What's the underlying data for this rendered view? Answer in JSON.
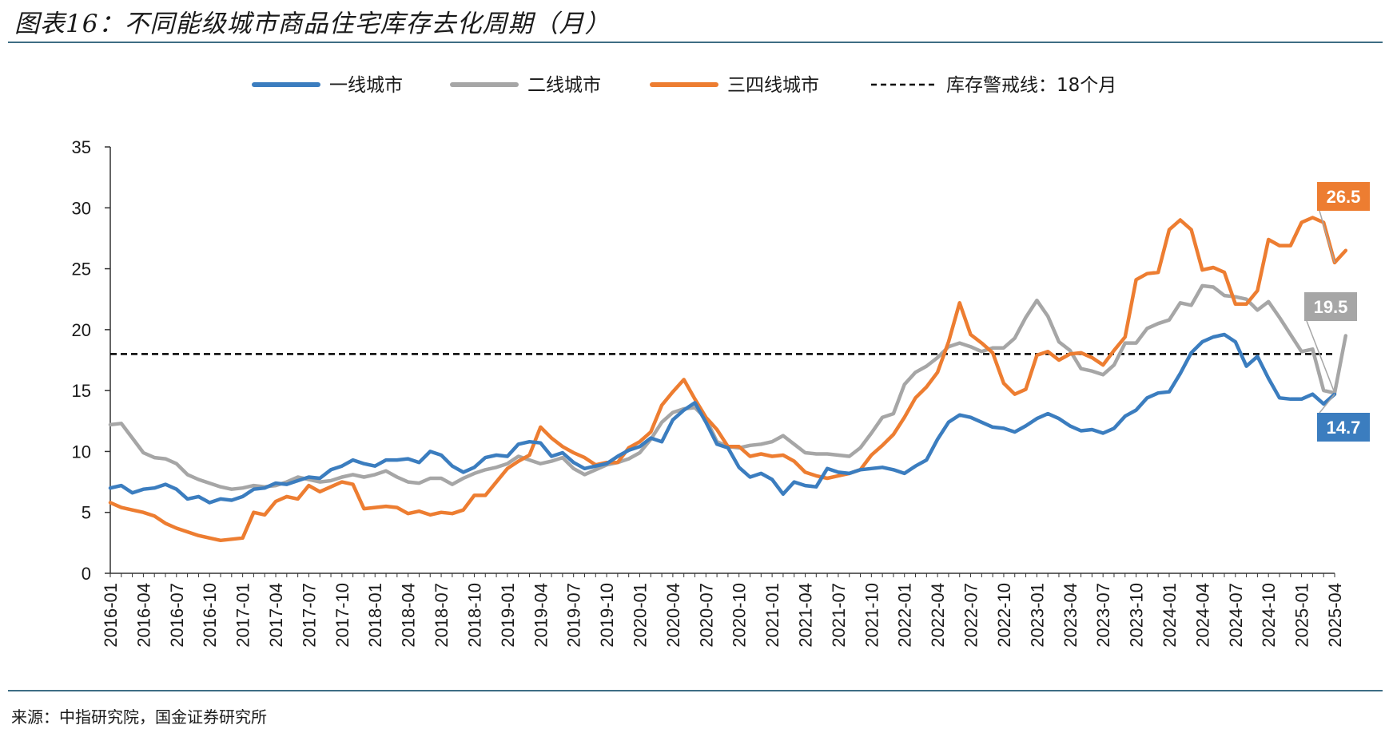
{
  "title": "图表16：不同能级城市商品住宅库存去化周期（月）",
  "source": "来源：中指研究院，国金证券研究所",
  "chart_data": {
    "type": "line",
    "title": "图表16：不同能级城市商品住宅库存去化周期（月）",
    "xlabel": "",
    "ylabel": "",
    "ylim": [
      0,
      35
    ],
    "yticks": [
      "0",
      "5",
      "10",
      "15",
      "20",
      "25",
      "30",
      "35"
    ],
    "xtick_labels": [
      "2016-01",
      "2016-04",
      "2016-07",
      "2016-10",
      "2017-01",
      "2017-04",
      "2017-07",
      "2017-10",
      "2018-01",
      "2018-04",
      "2018-07",
      "2018-10",
      "2019-01",
      "2019-04",
      "2019-07",
      "2019-10",
      "2020-01",
      "2020-04",
      "2020-07",
      "2020-10",
      "2021-01",
      "2021-04",
      "2021-07",
      "2021-10",
      "2022-01",
      "2022-04",
      "2022-07",
      "2022-10",
      "2023-01",
      "2023-04",
      "2023-07",
      "2023-10",
      "2024-01",
      "2024-04",
      "2024-07",
      "2024-10",
      "2025-01",
      "2025-04"
    ],
    "grid": false,
    "legend_position": "top",
    "series": [
      {
        "name": "一线城市",
        "color": "#3b7dbf",
        "values": [
          7.0,
          7.2,
          6.6,
          6.9,
          7.0,
          7.3,
          6.9,
          6.1,
          6.3,
          5.8,
          6.1,
          6.0,
          6.3,
          6.9,
          7.0,
          7.4,
          7.3,
          7.6,
          7.9,
          7.8,
          8.5,
          8.8,
          9.3,
          9.0,
          8.8,
          9.3,
          9.3,
          9.4,
          9.1,
          10.0,
          9.7,
          8.8,
          8.3,
          8.7,
          9.5,
          9.7,
          9.6,
          10.6,
          10.8,
          10.7,
          9.6,
          9.9,
          9.1,
          8.6,
          8.8,
          9.0,
          9.6,
          10.1,
          10.4,
          11.1,
          10.8,
          12.6,
          13.4,
          14.0,
          12.4,
          10.6,
          10.3,
          8.7,
          7.9,
          8.2,
          7.7,
          6.5,
          7.5,
          7.2,
          7.1,
          8.6,
          8.3,
          8.2,
          8.5,
          8.6,
          8.7,
          8.5,
          8.2,
          8.8,
          9.3,
          11.0,
          12.4,
          13.0,
          12.8,
          12.4,
          12.0,
          11.9,
          11.6,
          12.1,
          12.7,
          13.1,
          12.7,
          12.1,
          11.7,
          11.8,
          11.5,
          11.9,
          12.9,
          13.4,
          14.4,
          14.8,
          14.9,
          16.4,
          18.1,
          19.0,
          19.4,
          19.6,
          19.0,
          17.0,
          17.8,
          16.0,
          14.4,
          14.3,
          14.3,
          14.7,
          13.9,
          14.7
        ]
      },
      {
        "name": "二线城市",
        "color": "#a6a6a6",
        "values": [
          12.2,
          12.3,
          11.1,
          9.9,
          9.5,
          9.4,
          9.0,
          8.1,
          7.7,
          7.4,
          7.1,
          6.9,
          7.0,
          7.2,
          7.1,
          7.2,
          7.5,
          7.9,
          7.7,
          7.5,
          7.6,
          7.9,
          8.1,
          7.9,
          8.1,
          8.4,
          7.9,
          7.5,
          7.4,
          7.8,
          7.8,
          7.3,
          7.8,
          8.2,
          8.5,
          8.7,
          9.0,
          9.6,
          9.3,
          9.0,
          9.2,
          9.5,
          8.6,
          8.1,
          8.5,
          8.9,
          9.1,
          9.4,
          9.9,
          11.0,
          12.4,
          13.2,
          13.5,
          13.6,
          12.7,
          10.8,
          10.4,
          10.3,
          10.5,
          10.6,
          10.8,
          11.3,
          10.6,
          9.9,
          9.8,
          9.8,
          9.7,
          9.6,
          10.3,
          11.5,
          12.8,
          13.1,
          15.5,
          16.5,
          17.0,
          17.7,
          18.6,
          18.9,
          18.6,
          18.2,
          18.5,
          18.5,
          19.3,
          21.0,
          22.4,
          21.1,
          19.0,
          18.3,
          16.8,
          16.6,
          16.3,
          17.1,
          18.9,
          18.9,
          20.1,
          20.5,
          20.8,
          22.2,
          22.0,
          23.6,
          23.5,
          22.8,
          22.7,
          22.5,
          21.6,
          22.3,
          21.0,
          19.6,
          18.2,
          18.4,
          15.0,
          14.8,
          19.5
        ]
      },
      {
        "name": "三四线城市",
        "color": "#ed7d31",
        "values": [
          5.8,
          5.4,
          5.2,
          5.0,
          4.7,
          4.1,
          3.7,
          3.4,
          3.1,
          2.9,
          2.7,
          2.8,
          2.9,
          5.0,
          4.8,
          5.9,
          6.3,
          6.1,
          7.2,
          6.7,
          7.1,
          7.5,
          7.3,
          5.3,
          5.4,
          5.5,
          5.4,
          4.9,
          5.1,
          4.8,
          5.0,
          4.9,
          5.2,
          6.4,
          6.4,
          7.5,
          8.6,
          9.2,
          9.7,
          12.0,
          11.1,
          10.4,
          9.9,
          9.5,
          8.9,
          9.1,
          9.1,
          10.3,
          10.8,
          11.6,
          13.8,
          14.9,
          15.9,
          14.3,
          12.8,
          11.8,
          10.4,
          10.4,
          9.6,
          9.8,
          9.6,
          9.7,
          9.2,
          8.3,
          8.0,
          7.8,
          8.0,
          8.2,
          8.5,
          9.7,
          10.5,
          11.4,
          12.8,
          14.4,
          15.3,
          16.5,
          19.0,
          22.2,
          19.6,
          18.9,
          18.1,
          15.6,
          14.7,
          15.1,
          17.9,
          18.2,
          17.5,
          18.0,
          18.1,
          17.7,
          17.1,
          18.3,
          19.4,
          24.1,
          24.6,
          24.7,
          28.2,
          29.0,
          28.2,
          24.9,
          25.1,
          24.7,
          22.1,
          22.1,
          23.2,
          27.4,
          26.9,
          26.9,
          28.8,
          29.2,
          28.8,
          25.5,
          26.5
        ]
      },
      {
        "name": "库存警戒线：18个月",
        "color": "#000000",
        "style": "dashed",
        "constant": 18
      }
    ],
    "end_labels": [
      {
        "series": "三四线城市",
        "text": "26.5",
        "color": "#ed7d31"
      },
      {
        "series": "二线城市",
        "text": "19.5",
        "color": "#a6a6a6"
      },
      {
        "series": "一线城市",
        "text": "14.7",
        "color": "#3b7dbf"
      }
    ]
  }
}
